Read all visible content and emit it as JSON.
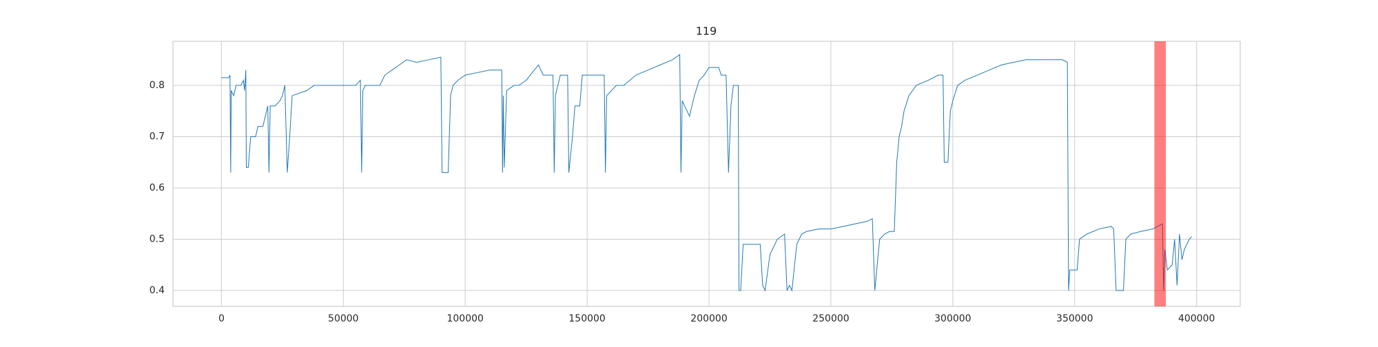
{
  "chart_data": {
    "type": "line",
    "title": "119",
    "color": "#1f77b4",
    "grid": true,
    "xlim": [
      -19900,
      417900
    ],
    "xticks": [
      0,
      50000,
      100000,
      150000,
      200000,
      250000,
      300000,
      350000,
      400000
    ],
    "ylim": [
      0.369,
      0.886
    ],
    "yticks": [
      0.4,
      0.5,
      0.6,
      0.7,
      0.8
    ],
    "spans": [
      {
        "range": [
          382700,
          387400
        ],
        "color": "#ff0000",
        "opacity": 0.5
      }
    ],
    "x": [
      0,
      3000,
      3500,
      3800,
      4000,
      5000,
      6000,
      8000,
      9000,
      9500,
      10000,
      10200,
      11000,
      12000,
      14000,
      15000,
      17000,
      18000,
      19000,
      19500,
      20000,
      22000,
      24000,
      25000,
      26000,
      27000,
      28000,
      29000,
      35000,
      38000,
      55000,
      57000,
      57500,
      58000,
      59000,
      65000,
      67000,
      70000,
      73000,
      76000,
      80000,
      85000,
      90000,
      90500,
      93000,
      94000,
      95000,
      97000,
      100000,
      105000,
      110000,
      115000,
      115300,
      115600,
      116000,
      117000,
      120000,
      122000,
      125000,
      130000,
      132000,
      136000,
      136500,
      137000,
      139000,
      142000,
      142500,
      144000,
      145000,
      147000,
      148000,
      150000,
      157000,
      157500,
      158000,
      160000,
      162000,
      165000,
      170000,
      175000,
      180000,
      185000,
      188000,
      188500,
      189000,
      190000,
      192000,
      194000,
      196000,
      198000,
      200000,
      204000,
      205000,
      207000,
      208000,
      209000,
      210000,
      212000,
      212300,
      213000,
      214000,
      218000,
      221000,
      222000,
      223000,
      225000,
      227000,
      228000,
      231000,
      232000,
      233000,
      234000,
      236000,
      238000,
      240000,
      245000,
      250000,
      255000,
      260000,
      265000,
      267000,
      268000,
      269000,
      270000,
      272000,
      274000,
      276000,
      277000,
      278000,
      279000,
      280000,
      282000,
      285000,
      290000,
      294000,
      296000,
      296500,
      298000,
      299000,
      300000,
      302000,
      305000,
      310000,
      315000,
      320000,
      325000,
      330000,
      340000,
      345000,
      347000,
      347500,
      348000,
      351000,
      352000,
      355000,
      360000,
      365000,
      366000,
      367000,
      370000,
      371000,
      373000,
      377000,
      382000,
      384000,
      386000,
      386500,
      387000,
      388000,
      390000,
      391000,
      392000,
      393000,
      394000,
      395000,
      397000,
      398000
    ],
    "values": [
      0.815,
      0.815,
      0.82,
      0.63,
      0.79,
      0.78,
      0.8,
      0.8,
      0.81,
      0.79,
      0.83,
      0.64,
      0.64,
      0.7,
      0.7,
      0.72,
      0.72,
      0.74,
      0.76,
      0.63,
      0.76,
      0.76,
      0.77,
      0.78,
      0.8,
      0.63,
      0.7,
      0.78,
      0.79,
      0.8,
      0.8,
      0.81,
      0.63,
      0.79,
      0.8,
      0.8,
      0.82,
      0.83,
      0.84,
      0.85,
      0.845,
      0.85,
      0.855,
      0.63,
      0.63,
      0.78,
      0.8,
      0.81,
      0.82,
      0.825,
      0.83,
      0.83,
      0.63,
      0.78,
      0.64,
      0.79,
      0.8,
      0.8,
      0.81,
      0.84,
      0.82,
      0.82,
      0.63,
      0.78,
      0.82,
      0.82,
      0.63,
      0.7,
      0.76,
      0.76,
      0.82,
      0.82,
      0.82,
      0.63,
      0.78,
      0.79,
      0.8,
      0.8,
      0.82,
      0.83,
      0.84,
      0.85,
      0.86,
      0.63,
      0.77,
      0.76,
      0.74,
      0.78,
      0.81,
      0.82,
      0.835,
      0.835,
      0.82,
      0.82,
      0.63,
      0.76,
      0.8,
      0.8,
      0.4,
      0.4,
      0.49,
      0.49,
      0.49,
      0.41,
      0.4,
      0.47,
      0.49,
      0.5,
      0.51,
      0.4,
      0.41,
      0.4,
      0.49,
      0.51,
      0.515,
      0.52,
      0.52,
      0.525,
      0.53,
      0.535,
      0.54,
      0.4,
      0.45,
      0.5,
      0.51,
      0.515,
      0.515,
      0.65,
      0.7,
      0.72,
      0.75,
      0.78,
      0.8,
      0.81,
      0.82,
      0.82,
      0.65,
      0.65,
      0.75,
      0.77,
      0.8,
      0.81,
      0.82,
      0.83,
      0.84,
      0.845,
      0.85,
      0.85,
      0.85,
      0.845,
      0.4,
      0.44,
      0.44,
      0.5,
      0.51,
      0.52,
      0.525,
      0.52,
      0.4,
      0.4,
      0.5,
      0.51,
      0.515,
      0.52,
      0.525,
      0.53,
      0.4,
      0.48,
      0.44,
      0.45,
      0.5,
      0.41,
      0.51,
      0.46,
      0.48,
      0.5,
      0.505
    ]
  }
}
